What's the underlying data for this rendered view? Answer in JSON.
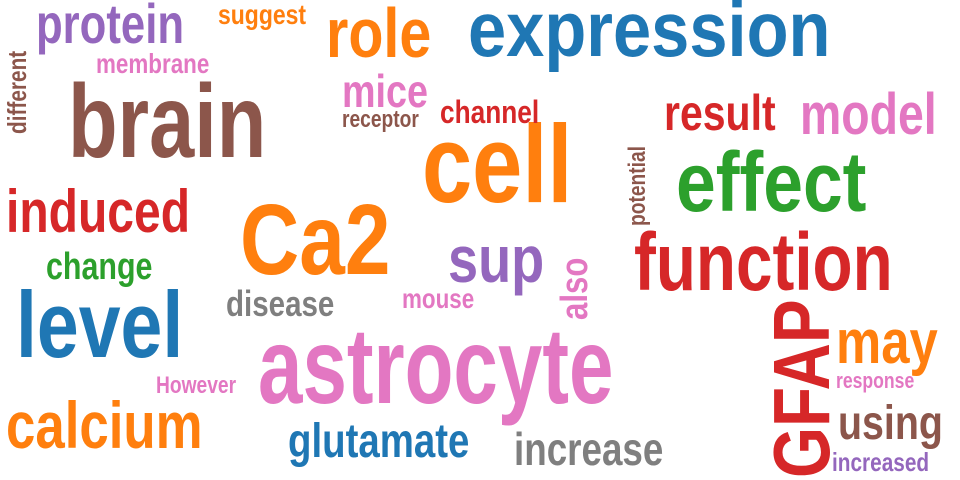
{
  "words": [
    {
      "text": "expression",
      "color": "#1f77b4"
    },
    {
      "text": "brain",
      "color": "#8c564b"
    },
    {
      "text": "astrocyte",
      "color": "#e377c2"
    },
    {
      "text": "cell",
      "color": "#ff7f0e"
    },
    {
      "text": "effect",
      "color": "#2ca02c"
    },
    {
      "text": "function",
      "color": "#d62728"
    },
    {
      "text": "level",
      "color": "#1f77b4"
    },
    {
      "text": "Ca2",
      "color": "#ff7f0e"
    },
    {
      "text": "role",
      "color": "#ff7f0e"
    },
    {
      "text": "protein",
      "color": "#9467bd"
    },
    {
      "text": "induced",
      "color": "#d62728"
    },
    {
      "text": "calcium",
      "color": "#ff7f0e"
    },
    {
      "text": "GFAP",
      "color": "#d62728"
    },
    {
      "text": "model",
      "color": "#e377c2"
    },
    {
      "text": "result",
      "color": "#d62728"
    },
    {
      "text": "may",
      "color": "#ff7f0e"
    },
    {
      "text": "sup",
      "color": "#9467bd"
    },
    {
      "text": "glutamate",
      "color": "#1f77b4"
    },
    {
      "text": "increase",
      "color": "#7f7f7f"
    },
    {
      "text": "mice",
      "color": "#e377c2"
    },
    {
      "text": "using",
      "color": "#8c564b"
    },
    {
      "text": "change",
      "color": "#2ca02c"
    },
    {
      "text": "disease",
      "color": "#7f7f7f"
    },
    {
      "text": "channel",
      "color": "#d62728"
    },
    {
      "text": "suggest",
      "color": "#ff7f0e"
    },
    {
      "text": "membrane",
      "color": "#e377c2"
    },
    {
      "text": "receptor",
      "color": "#8c564b"
    },
    {
      "text": "also",
      "color": "#e377c2"
    },
    {
      "text": "mouse",
      "color": "#e377c2"
    },
    {
      "text": "However",
      "color": "#e377c2"
    },
    {
      "text": "response",
      "color": "#e377c2"
    },
    {
      "text": "increased",
      "color": "#9467bd"
    },
    {
      "text": "different",
      "color": "#8c564b"
    },
    {
      "text": "potential",
      "color": "#8c564b"
    }
  ]
}
